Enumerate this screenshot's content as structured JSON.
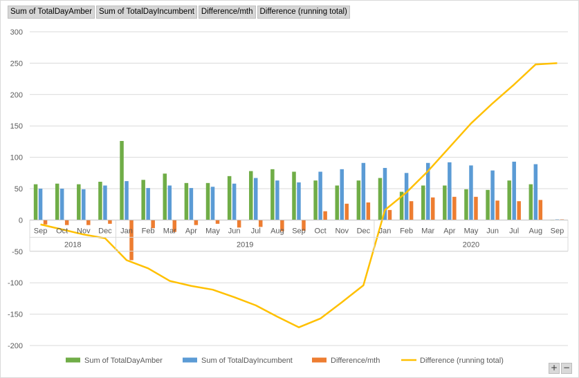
{
  "field_buttons": [
    "Sum of TotalDayAmber",
    "Sum of TotalDayIncumbent",
    "Difference/mth",
    "Difference (running total)"
  ],
  "zoom": {
    "plus": "+",
    "minus": "−"
  },
  "colors": {
    "amber": "#70ad47",
    "incumbent": "#5b9bd5",
    "difference": "#ed7d31",
    "running": "#ffc000",
    "grid": "#d9d9d9",
    "axis_text": "#595959"
  },
  "chart_data": {
    "type": "bar",
    "title": "",
    "xlabel": "",
    "ylabel": "",
    "ylim": [
      -200,
      300
    ],
    "yticks": [
      -200,
      -150,
      -100,
      -50,
      0,
      50,
      100,
      150,
      200,
      250,
      300
    ],
    "grid": true,
    "legend_position": "bottom",
    "categories": [
      "Sep",
      "Oct",
      "Nov",
      "Dec",
      "Jan",
      "Feb",
      "Mar",
      "Apr",
      "May",
      "Jun",
      "Jul",
      "Aug",
      "Sep",
      "Oct",
      "Nov",
      "Dec",
      "Jan",
      "Feb",
      "Mar",
      "Apr",
      "May",
      "Jun",
      "Jul",
      "Aug",
      "Sep"
    ],
    "year_groups": [
      {
        "label": "2018",
        "start": 0,
        "end": 3
      },
      {
        "label": "2019",
        "start": 4,
        "end": 15
      },
      {
        "label": "2020",
        "start": 16,
        "end": 24
      }
    ],
    "series": [
      {
        "name": "Sum of TotalDayAmber",
        "type": "bar",
        "values": [
          57,
          58,
          57,
          61,
          126,
          64,
          74,
          59,
          59,
          70,
          78,
          81,
          77,
          63,
          55,
          63,
          67,
          45,
          55,
          55,
          49,
          48,
          63,
          57,
          0
        ]
      },
      {
        "name": "Sum of TotalDayIncumbent",
        "type": "bar",
        "values": [
          50,
          50,
          49,
          55,
          62,
          51,
          55,
          51,
          53,
          58,
          67,
          63,
          60,
          77,
          81,
          91,
          83,
          75,
          91,
          92,
          87,
          79,
          93,
          89,
          1
        ]
      },
      {
        "name": "Difference/mth",
        "type": "bar",
        "values": [
          -7,
          -8,
          -8,
          -6,
          -64,
          -13,
          -19,
          -8,
          -6,
          -12,
          -11,
          -18,
          -17,
          14,
          26,
          28,
          16,
          30,
          36,
          37,
          37,
          31,
          30,
          32,
          1
        ]
      },
      {
        "name": "Difference (running total)",
        "type": "line",
        "values": [
          -7,
          -15,
          -23,
          -29,
          -64,
          -77,
          -97,
          -105,
          -111,
          -123,
          -136,
          -154,
          -171,
          -157,
          -131,
          -104,
          16,
          44,
          78,
          116,
          154,
          186,
          216,
          248,
          250
        ]
      }
    ]
  }
}
